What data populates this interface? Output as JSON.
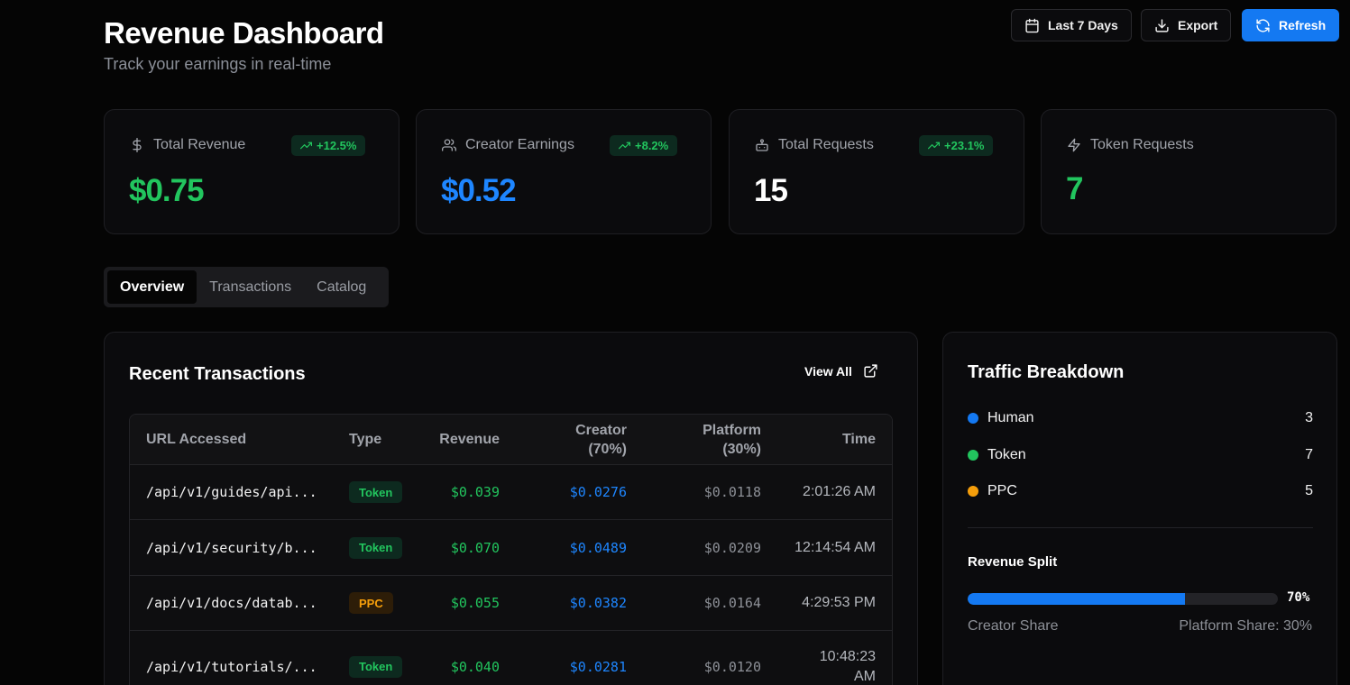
{
  "header": {
    "title": "Revenue Dashboard",
    "subtitle": "Track your earnings in real-time",
    "date_range_label": "Last 7 Days",
    "export_label": "Export",
    "refresh_label": "Refresh"
  },
  "stats": [
    {
      "label": "Total Revenue",
      "value": "$0.75",
      "change": "+12.5%",
      "icon": "dollar-icon",
      "color": "#22c55e"
    },
    {
      "label": "Creator Earnings",
      "value": "$0.52",
      "change": "+8.2%",
      "icon": "users-icon",
      "color": "#1e86ff"
    },
    {
      "label": "Total Requests",
      "value": "15",
      "change": "+23.1%",
      "icon": "bot-icon",
      "color": "#ffffff"
    },
    {
      "label": "Token Requests",
      "value": "7",
      "icon": "zap-icon",
      "color": "#22c55e"
    }
  ],
  "tabs": [
    "Overview",
    "Transactions",
    "Catalog"
  ],
  "transactions": {
    "title": "Recent Transactions",
    "view_all_label": "View All",
    "columns": {
      "url": "URL Accessed",
      "type": "Type",
      "revenue": "Revenue",
      "creator_line1": "Creator",
      "creator_line2": "(70%)",
      "platform_line1": "Platform",
      "platform_line2": "(30%)",
      "time": "Time"
    },
    "rows": [
      {
        "url": "/api/v1/guides/api...",
        "type": "Token",
        "revenue": "$0.039",
        "creator": "$0.0276",
        "platform": "$0.0118",
        "time": "2:01:26 AM"
      },
      {
        "url": "/api/v1/security/b...",
        "type": "Token",
        "revenue": "$0.070",
        "creator": "$0.0489",
        "platform": "$0.0209",
        "time": "12:14:54 AM"
      },
      {
        "url": "/api/v1/docs/datab...",
        "type": "PPC",
        "revenue": "$0.055",
        "creator": "$0.0382",
        "platform": "$0.0164",
        "time": "4:29:53 PM"
      },
      {
        "url": "/api/v1/tutorials/...",
        "type": "Token",
        "revenue": "$0.040",
        "creator": "$0.0281",
        "platform": "$0.0120",
        "time_line1": "10:48:23",
        "time_line2": "AM"
      }
    ]
  },
  "traffic": {
    "title": "Traffic Breakdown",
    "items": [
      {
        "label": "Human",
        "count": "3",
        "color": "#1479f2"
      },
      {
        "label": "Token",
        "count": "7",
        "color": "#22c55e"
      },
      {
        "label": "PPC",
        "count": "5",
        "color": "#f59e0b"
      }
    ],
    "split_title": "Revenue Split",
    "split_percent_label": "70%",
    "split_fraction": 0.7,
    "creator_share_label": "Creator Share",
    "platform_share_label": "Platform Share: 30%"
  }
}
